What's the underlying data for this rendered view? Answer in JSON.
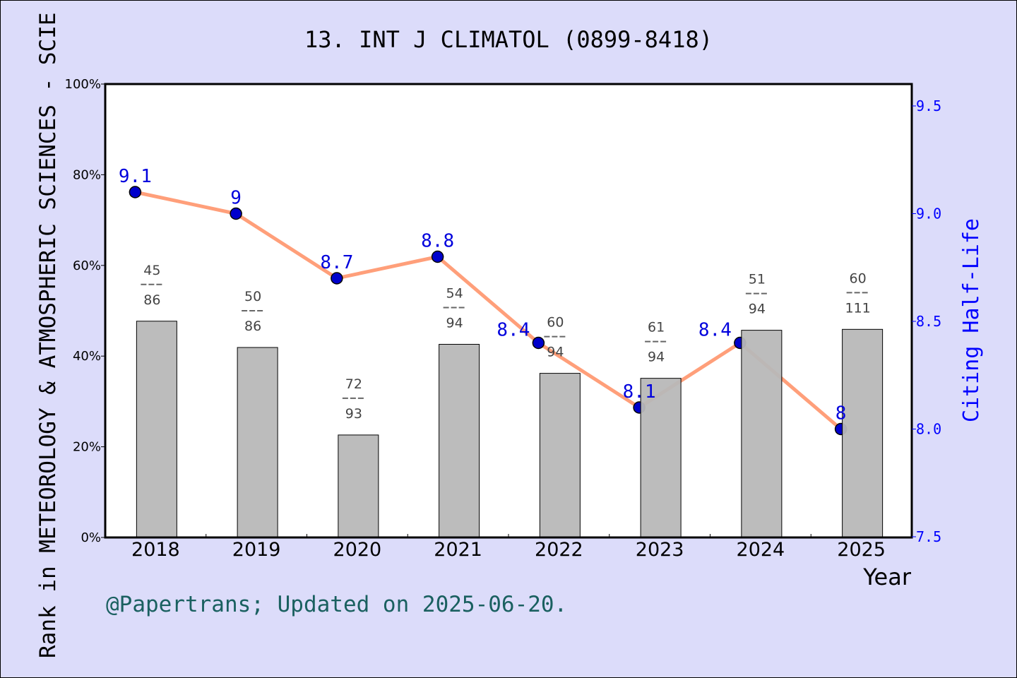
{
  "chart_data": {
    "type": "bar+line",
    "title": "13.  INT J CLIMATOL (0899-8418)",
    "xlabel": "Year",
    "ylabel": "Rank in METEOROLOGY & ATMOSPHERIC SCIENCES - SCIE",
    "ylabel_right": "Citing Half-Life",
    "categories": [
      "2018",
      "2019",
      "2020",
      "2021",
      "2022",
      "2023",
      "2024",
      "2025"
    ],
    "bars": {
      "ranks": [
        45,
        50,
        72,
        54,
        60,
        61,
        51,
        60
      ],
      "totals": [
        86,
        86,
        93,
        94,
        94,
        94,
        94,
        111
      ],
      "values_percent": [
        47.7,
        41.9,
        22.6,
        42.6,
        36.2,
        35.1,
        45.7,
        45.9
      ],
      "color": "#b8b8b8"
    },
    "line": {
      "values": [
        9.1,
        9.0,
        8.7,
        8.8,
        8.4,
        8.1,
        8.4,
        8.0
      ],
      "labels": [
        "9.1",
        "9",
        "8.7",
        "8.8",
        "8.4",
        "8.1",
        "8.4",
        "8"
      ],
      "line_color": "#ff9f7a",
      "marker_color": "#0000cc"
    },
    "ylim": [
      0,
      100
    ],
    "yticks": [
      "0%",
      "20%",
      "40%",
      "60%",
      "80%",
      "100%"
    ],
    "ylim_right": [
      7.5,
      9.5
    ],
    "yticks_right": [
      "7.5",
      "8.0",
      "8.5",
      "9.0",
      "9.5"
    ],
    "grid": false
  },
  "footer": "@Papertrans; Updated on 2025-06-20."
}
